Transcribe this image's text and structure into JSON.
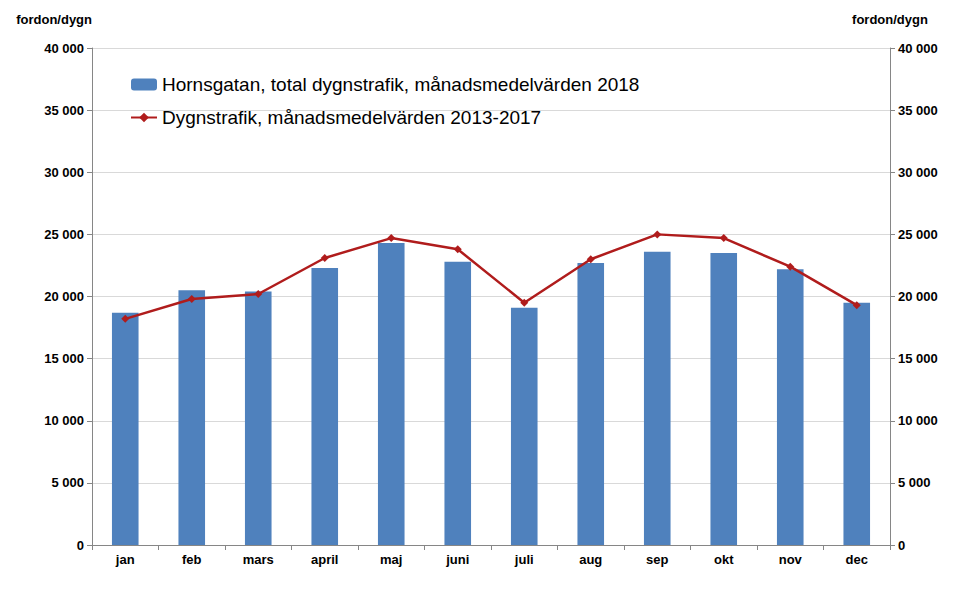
{
  "chart_data": {
    "type": "bar",
    "y_label": "fordon/dygn",
    "y2_label": "fordon/dygn",
    "categories": [
      "jan",
      "feb",
      "mars",
      "april",
      "maj",
      "juni",
      "juli",
      "aug",
      "sep",
      "okt",
      "nov",
      "dec"
    ],
    "series": [
      {
        "name": "Hornsgatan, total dygnstrafik, månadsmedelvärden 2018",
        "type": "bar",
        "color": "#4f81bd",
        "values": [
          18700,
          20500,
          20400,
          22300,
          24300,
          22800,
          19100,
          22700,
          23600,
          23500,
          22200,
          19500
        ]
      },
      {
        "name": "Dygnstrafik, månadsmedelvärden 2013-2017",
        "type": "line",
        "color": "#b01c1c",
        "marker": "diamond",
        "axis": "y2",
        "values": [
          18200,
          19800,
          20200,
          23100,
          24700,
          23800,
          19500,
          23000,
          25000,
          24700,
          22400,
          19300
        ]
      }
    ],
    "ylim": [
      0,
      40000
    ],
    "yticks": [
      0,
      {
        "value": 5000,
        "label": "5 000"
      },
      {
        "value": 10000,
        "label": "10 000"
      },
      {
        "value": 15000,
        "label": "15 000"
      },
      {
        "value": 20000,
        "label": "20 000"
      },
      {
        "value": 25000,
        "label": "25 000"
      },
      {
        "value": 30000,
        "label": "30 000"
      },
      {
        "value": 35000,
        "label": "35 000"
      },
      {
        "value": 40000,
        "label": "40 000"
      }
    ],
    "y2lim": [
      0,
      40000
    ],
    "y2ticks": [
      0,
      {
        "value": 5000,
        "label": "5 000"
      },
      {
        "value": 10000,
        "label": "10 000"
      },
      {
        "value": 15000,
        "label": "15 000"
      },
      {
        "value": 20000,
        "label": "20 000"
      },
      {
        "value": 25000,
        "label": "25 000"
      },
      {
        "value": 30000,
        "label": "30 000"
      },
      {
        "value": 35000,
        "label": "35 000"
      },
      {
        "value": 40000,
        "label": "40 000"
      }
    ],
    "grid": true,
    "legend": "top-left"
  }
}
